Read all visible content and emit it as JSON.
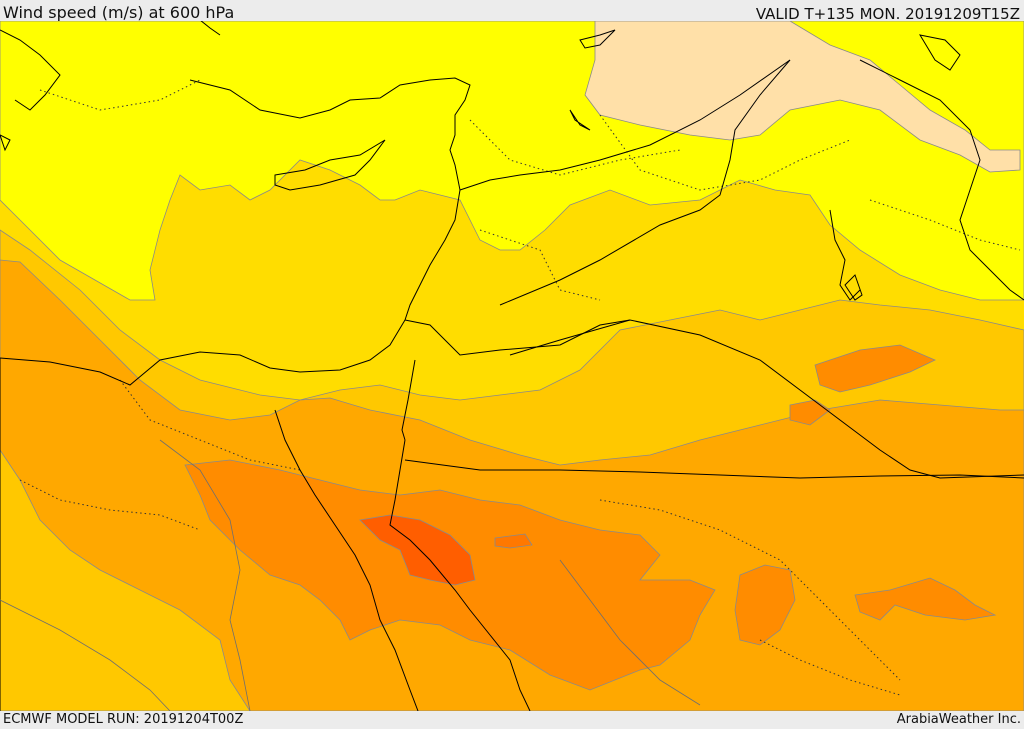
{
  "header": {
    "title": "Wind speed (m/s) at 600 hPa",
    "valid": "VALID T+135 MON. 20191209T15Z"
  },
  "footer": {
    "model_run": "ECMWF MODEL RUN: 20191204T00Z",
    "credit": "ArabiaWeather Inc."
  },
  "palette": {
    "band_1": "#ffe0a8",
    "band_2": "#ffff00",
    "band_3": "#ffdd00",
    "band_4": "#ffc800",
    "band_5": "#ffa800",
    "band_6": "#ff8c00",
    "band_7": "#ff7800",
    "band_8": "#ff5e00",
    "border_line": "#000000",
    "contour_line": "#6f6f6f"
  }
}
